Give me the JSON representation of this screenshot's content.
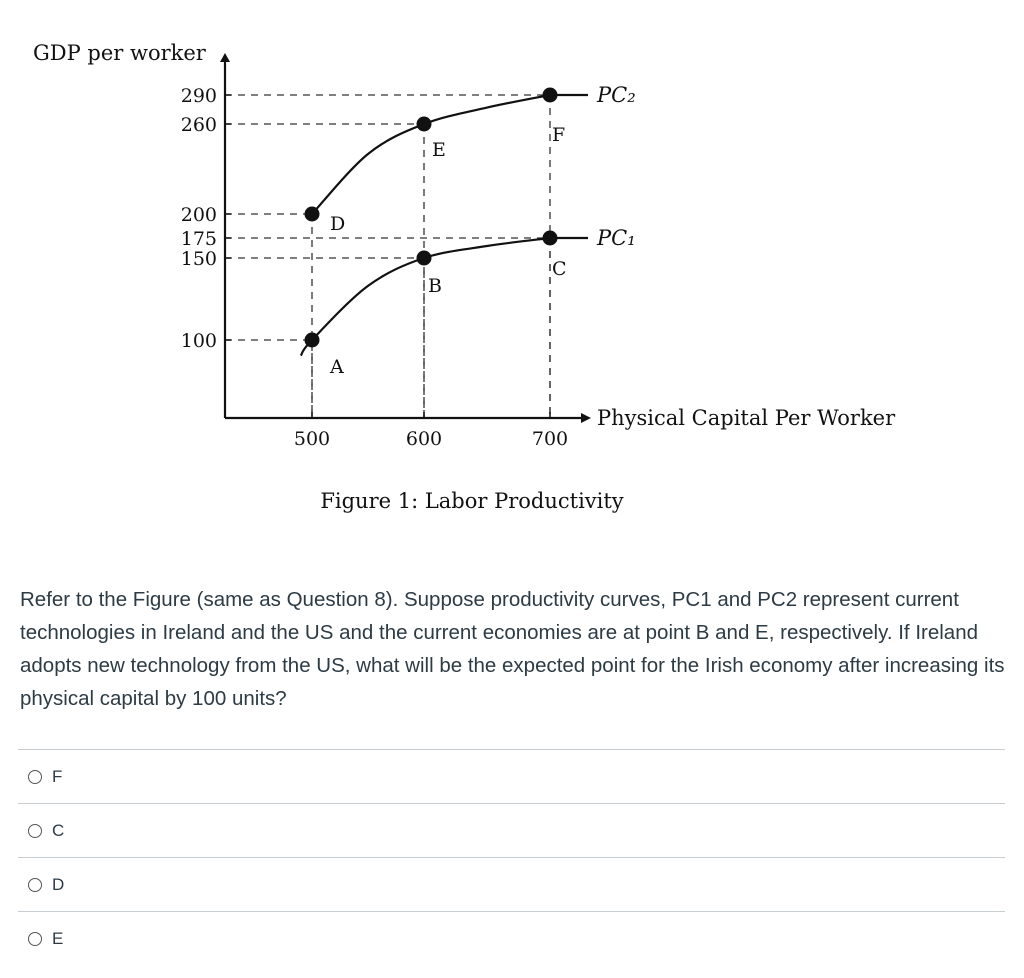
{
  "chart_data": {
    "type": "line",
    "title": "Figure 1: Labor Productivity",
    "xlabel": "Physical Capital Per Worker",
    "ylabel": "GDP per worker",
    "x_ticks": [
      "500",
      "600",
      "700"
    ],
    "y_ticks": [
      "100",
      "150",
      "175",
      "200",
      "260",
      "290"
    ],
    "series": [
      {
        "name": "PC₁",
        "x": [
          490,
          500,
          550,
          600,
          650,
          700
        ],
        "y": [
          80,
          100,
          133,
          150,
          165,
          175
        ]
      },
      {
        "name": "PC₂",
        "x": [
          500,
          550,
          600,
          650,
          700
        ],
        "y": [
          200,
          240,
          260,
          277,
          290
        ]
      }
    ],
    "points": [
      {
        "label": "A",
        "x": 500,
        "y": 100
      },
      {
        "label": "B",
        "x": 600,
        "y": 150
      },
      {
        "label": "C",
        "x": 700,
        "y": 175
      },
      {
        "label": "D",
        "x": 500,
        "y": 200
      },
      {
        "label": "E",
        "x": 600,
        "y": 260
      },
      {
        "label": "F",
        "x": 700,
        "y": 290
      }
    ]
  },
  "question": {
    "text": "Refer to the Figure (same as Question 8). Suppose productivity curves, PC1 and PC2 represent current technologies in Ireland and the US and the current economies are at point B and E, respectively. If Ireland adopts new technology from the US, what will be the expected point for the Irish economy after increasing its physical capital by 100 units?"
  },
  "options": [
    {
      "label": "F"
    },
    {
      "label": "C"
    },
    {
      "label": "D"
    },
    {
      "label": "E"
    }
  ]
}
